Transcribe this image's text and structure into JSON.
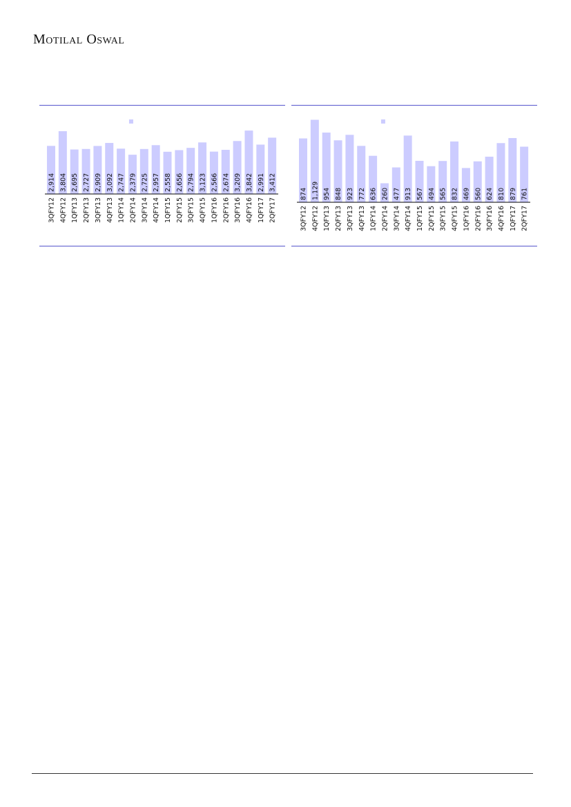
{
  "header": {
    "brand": "Motilal Oswal"
  },
  "colors": {
    "bar": "#ccccff",
    "rule": "#5555cc",
    "axis": "#000000"
  },
  "chart_data": [
    {
      "type": "bar",
      "categories": [
        "3QFY12",
        "4QFY12",
        "1QFY13",
        "2QFY13",
        "3QFY13",
        "4QFY13",
        "1QFY14",
        "2QFY14",
        "3QFY14",
        "4QFY14",
        "1QFY15",
        "2QFY15",
        "3QFY15",
        "4QFY15",
        "1QFY16",
        "2QFY16",
        "3QFY16",
        "4QFY16",
        "1QFY17",
        "2QFY17"
      ],
      "values": [
        2914,
        3804,
        2695,
        2727,
        2909,
        3092,
        2747,
        2379,
        2725,
        2957,
        2558,
        2656,
        2794,
        3123,
        2566,
        2674,
        3209,
        3842,
        2991,
        3412
      ],
      "data_labels": [
        "2,914",
        "3,804",
        "2,695",
        "2,727",
        "2,909",
        "3,092",
        "2,747",
        "2,379",
        "2,725",
        "2,957",
        "2,558",
        "2,656",
        "2,794",
        "3,123",
        "2,566",
        "2,674",
        "3,209",
        "3,842",
        "2,991",
        "3,412"
      ],
      "ylim": [
        0,
        4600
      ],
      "legend": "top-center",
      "grid": false
    },
    {
      "type": "bar",
      "categories": [
        "3QFY12",
        "4QFY12",
        "1QFY13",
        "2QFY13",
        "3QFY13",
        "4QFY13",
        "1QFY14",
        "2QFY14",
        "3QFY14",
        "4QFY14",
        "1QFY15",
        "2QFY15",
        "3QFY15",
        "4QFY15",
        "1QFY16",
        "2QFY16",
        "3QFY16",
        "4QFY16",
        "1QFY17",
        "2QFY17"
      ],
      "values": [
        874,
        1129,
        954,
        848,
        923,
        772,
        636,
        260,
        477,
        913,
        567,
        494,
        565,
        832,
        469,
        560,
        624,
        810,
        879,
        761
      ],
      "data_labels": [
        "874",
        "1,129",
        "954",
        "848",
        "923",
        "772",
        "636",
        "260",
        "477",
        "913",
        "567",
        "494",
        "565",
        "832",
        "469",
        "560",
        "624",
        "810",
        "879",
        "761"
      ],
      "ylim": [
        0,
        1200
      ],
      "legend": "top-center",
      "grid": false
    }
  ]
}
